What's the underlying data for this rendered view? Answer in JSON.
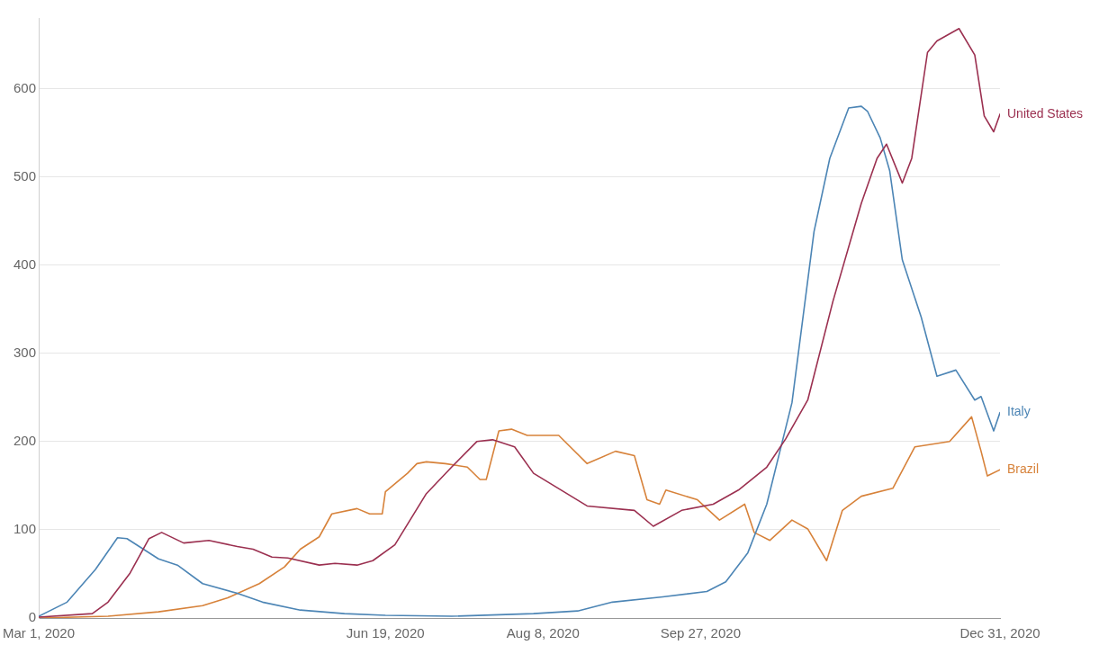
{
  "chart_data": {
    "type": "line",
    "xlim": [
      "2020-03-01",
      "2020-12-31"
    ],
    "ylim": [
      0,
      680
    ],
    "xticks": [
      {
        "value": "2020-03-01",
        "label": "Mar 1, 2020"
      },
      {
        "value": "2020-06-19",
        "label": "Jun 19, 2020"
      },
      {
        "value": "2020-08-08",
        "label": "Aug 8, 2020"
      },
      {
        "value": "2020-09-27",
        "label": "Sep 27, 2020"
      },
      {
        "value": "2020-12-31",
        "label": "Dec 31, 2020"
      }
    ],
    "yticks": [
      0,
      100,
      200,
      300,
      400,
      500,
      600
    ],
    "grid": "y",
    "legend": false,
    "marker": "none",
    "line_style": "solid",
    "series": [
      {
        "name": "United States",
        "color": "#9b3050",
        "x": [
          "2020-03-01",
          "2020-03-18",
          "2020-03-23",
          "2020-03-30",
          "2020-04-05",
          "2020-04-09",
          "2020-04-16",
          "2020-04-24",
          "2020-05-03",
          "2020-05-08",
          "2020-05-14",
          "2020-05-19",
          "2020-05-29",
          "2020-06-03",
          "2020-06-10",
          "2020-06-15",
          "2020-06-22",
          "2020-07-02",
          "2020-07-10",
          "2020-07-18",
          "2020-07-23",
          "2020-07-30",
          "2020-08-05",
          "2020-08-22",
          "2020-09-06",
          "2020-09-12",
          "2020-09-21",
          "2020-10-01",
          "2020-10-09",
          "2020-10-18",
          "2020-10-24",
          "2020-10-31",
          "2020-11-08",
          "2020-11-17",
          "2020-11-22",
          "2020-11-25",
          "2020-11-30",
          "2020-12-03",
          "2020-12-08",
          "2020-12-11",
          "2020-12-18",
          "2020-12-23",
          "2020-12-26",
          "2020-12-29",
          "2020-12-31"
        ],
        "values": [
          1,
          5,
          18,
          51,
          90,
          97,
          85,
          88,
          81,
          78,
          69,
          68,
          60,
          62,
          60,
          65,
          83,
          141,
          171,
          200,
          202,
          194,
          164,
          127,
          122,
          104,
          122,
          129,
          145,
          171,
          203,
          247,
          359,
          470,
          521,
          537,
          493,
          521,
          641,
          654,
          668,
          638,
          569,
          551,
          571
        ]
      },
      {
        "name": "Italy",
        "color": "#4c85b5",
        "x": [
          "2020-03-01",
          "2020-03-10",
          "2020-03-19",
          "2020-03-26",
          "2020-03-29",
          "2020-04-08",
          "2020-04-14",
          "2020-04-22",
          "2020-05-03",
          "2020-05-11",
          "2020-05-23",
          "2020-06-06",
          "2020-06-19",
          "2020-07-10",
          "2020-08-05",
          "2020-08-19",
          "2020-08-30",
          "2020-09-15",
          "2020-09-29",
          "2020-10-05",
          "2020-10-12",
          "2020-10-18",
          "2020-10-26",
          "2020-11-02",
          "2020-11-07",
          "2020-11-13",
          "2020-11-17",
          "2020-11-19",
          "2020-11-23",
          "2020-11-26",
          "2020-11-30",
          "2020-12-06",
          "2020-12-11",
          "2020-12-17",
          "2020-12-23",
          "2020-12-25",
          "2020-12-29",
          "2020-12-31"
        ],
        "values": [
          2,
          18,
          55,
          91,
          90,
          67,
          60,
          39,
          28,
          18,
          9,
          5,
          3,
          2,
          5,
          8,
          18,
          24,
          30,
          41,
          74,
          129,
          244,
          438,
          521,
          578,
          580,
          574,
          544,
          507,
          406,
          341,
          274,
          281,
          247,
          251,
          212,
          233
        ]
      },
      {
        "name": "Brazil",
        "color": "#d7823a",
        "x": [
          "2020-03-01",
          "2020-03-23",
          "2020-04-08",
          "2020-04-22",
          "2020-04-30",
          "2020-05-10",
          "2020-05-18",
          "2020-05-23",
          "2020-05-29",
          "2020-06-02",
          "2020-06-10",
          "2020-06-14",
          "2020-06-18",
          "2020-06-19",
          "2020-06-26",
          "2020-06-29",
          "2020-07-02",
          "2020-07-08",
          "2020-07-15",
          "2020-07-19",
          "2020-07-21",
          "2020-07-25",
          "2020-07-29",
          "2020-08-03",
          "2020-08-13",
          "2020-08-22",
          "2020-08-31",
          "2020-09-06",
          "2020-09-10",
          "2020-09-14",
          "2020-09-16",
          "2020-09-26",
          "2020-10-03",
          "2020-10-11",
          "2020-10-14",
          "2020-10-19",
          "2020-10-26",
          "2020-10-31",
          "2020-11-06",
          "2020-11-11",
          "2020-11-17",
          "2020-11-27",
          "2020-12-04",
          "2020-12-15",
          "2020-12-22",
          "2020-12-25",
          "2020-12-27",
          "2020-12-31"
        ],
        "values": [
          0,
          2,
          7,
          14,
          23,
          39,
          58,
          78,
          92,
          118,
          124,
          118,
          118,
          143,
          164,
          175,
          177,
          175,
          171,
          157,
          157,
          212,
          214,
          207,
          207,
          175,
          189,
          184,
          134,
          129,
          145,
          134,
          111,
          129,
          97,
          88,
          111,
          101,
          65,
          122,
          138,
          147,
          194,
          200,
          228,
          189,
          161,
          168
        ]
      }
    ]
  }
}
